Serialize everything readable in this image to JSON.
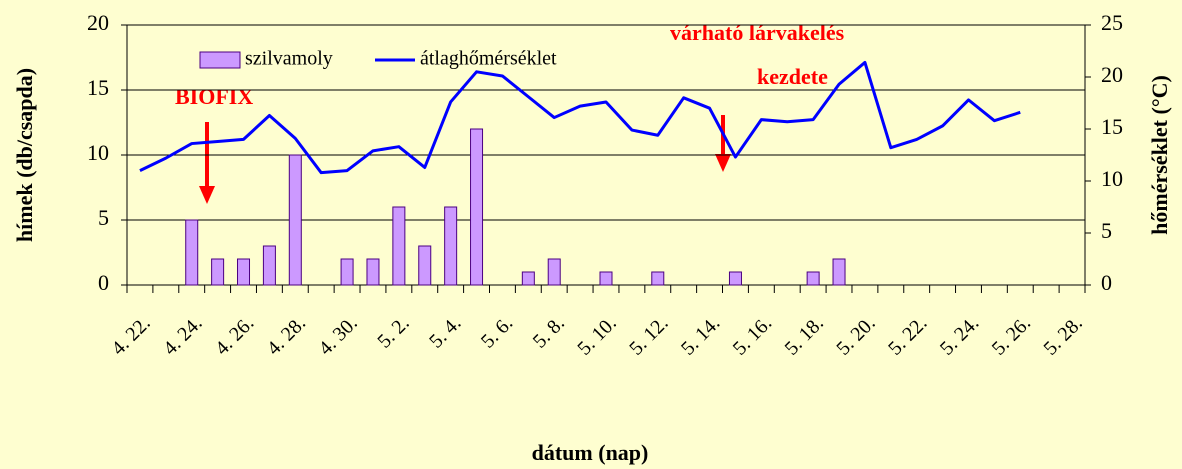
{
  "chart_data": {
    "type": "bar-line",
    "y_label": "hímek (db/csapda)",
    "y2_label": "hőmérséklet (°C)",
    "x_label": "dátum (nap)",
    "annotations": [
      "BIOFIX",
      "várható lárvakelés",
      "kezdete"
    ],
    "categories": [
      "4. 22.",
      null,
      "4. 24.",
      null,
      "4. 26.",
      null,
      "4. 28.",
      null,
      "4. 30.",
      null,
      "5. 2.",
      null,
      "5. 4.",
      null,
      "5. 6.",
      null,
      "5. 8.",
      null,
      "5. 10.",
      null,
      "5. 12.",
      null,
      "5. 14.",
      null,
      "5. 16.",
      null,
      "5. 18.",
      null,
      "5. 20.",
      null,
      "5. 22.",
      null,
      "5. 24.",
      null,
      "5. 26.",
      null,
      "5. 28."
    ],
    "series": [
      {
        "name": "szilvamoly",
        "type": "bar",
        "color": "#cc99ff",
        "values": [
          null,
          null,
          5,
          2,
          2,
          3,
          10,
          null,
          2,
          2,
          6,
          3,
          6,
          12,
          null,
          1,
          2,
          null,
          1,
          null,
          1,
          null,
          null,
          1,
          null,
          null,
          1,
          2,
          null,
          null,
          null,
          null,
          null,
          null,
          null,
          null,
          null
        ]
      },
      {
        "name": "átlaghőmérséklet",
        "type": "line",
        "axis": "y2",
        "color": "#0000ff",
        "values": [
          11.0,
          12.2,
          13.6,
          13.8,
          14.0,
          16.3,
          14.1,
          10.8,
          11.0,
          12.9,
          13.3,
          11.3,
          17.6,
          20.5,
          20.1,
          18.1,
          16.1,
          17.2,
          17.6,
          14.9,
          14.4,
          18.0,
          17.0,
          12.3,
          15.9,
          15.7,
          15.9,
          19.3,
          21.4,
          13.2,
          14.0,
          15.3,
          17.8,
          15.8,
          16.6,
          null,
          null
        ]
      }
    ],
    "ylim": [
      0,
      20
    ],
    "yticks": [
      0,
      5,
      10,
      15,
      20
    ],
    "y2lim": [
      0,
      25
    ],
    "y2ticks": [
      0,
      5,
      10,
      15,
      20,
      25
    ],
    "grid": true,
    "legend": "top"
  }
}
